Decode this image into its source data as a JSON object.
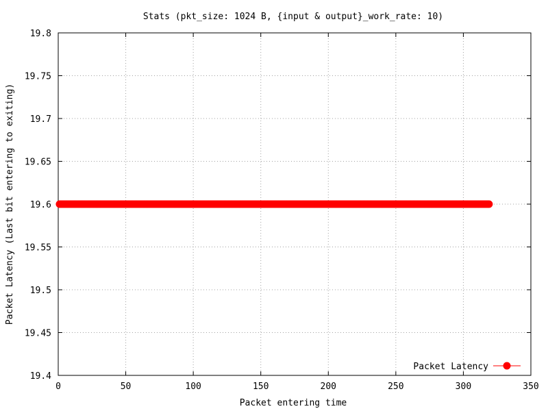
{
  "chart_data": {
    "type": "scatter",
    "title": "Stats (pkt_size: 1024 B, {input & output}_work_rate: 10)",
    "xlabel": "Packet entering time",
    "ylabel": "Packet Latency (Last bit entering to exiting)",
    "xlim": [
      0,
      350
    ],
    "ylim": [
      19.4,
      19.8
    ],
    "xticks": [
      0,
      50,
      100,
      150,
      200,
      250,
      300,
      350
    ],
    "yticks": [
      19.4,
      19.45,
      19.5,
      19.55,
      19.6,
      19.65,
      19.7,
      19.75,
      19.8
    ],
    "grid": true,
    "legend_position": "bottom-right",
    "series": [
      {
        "name": "Packet Latency",
        "color": "#ff0000",
        "marker": "filled-circle",
        "x_range": [
          1,
          319
        ],
        "x_step": 1,
        "y_constant": 19.6
      }
    ]
  }
}
